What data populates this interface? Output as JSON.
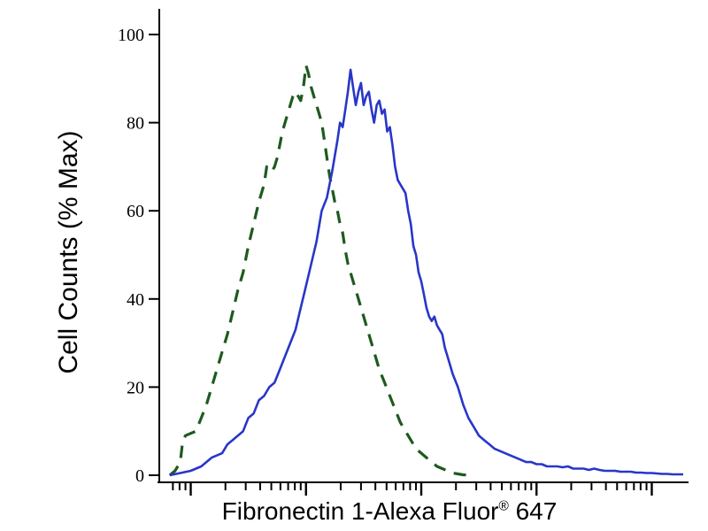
{
  "page": {
    "background": "#ffffff"
  },
  "chart_data": {
    "type": "line",
    "title": "",
    "ylabel": "Cell Counts (% Max)",
    "xlabel": "Fibronectin 1-Alexa Fluor",
    "xlabel_registered": "®",
    "xlabel_suffix": " 647",
    "ylim": [
      0,
      100
    ],
    "y_ticks": [
      0,
      20,
      40,
      60,
      80,
      100
    ],
    "x_scale": "log",
    "x_tick_labels": [],
    "x_decades_norm": [
      -16,
      6,
      28,
      50,
      72,
      94
    ],
    "x_decade_spacing": 22,
    "grid": false,
    "legend": false,
    "axis_color": "#000000",
    "series": [
      {
        "name": "dashed-green-curve",
        "color": "#1e5a1e",
        "style": "dashed",
        "dash": "14 10",
        "width": 3.2,
        "points": [
          [
            2,
            0
          ],
          [
            3,
            1
          ],
          [
            4,
            3
          ],
          [
            4.5,
            8
          ],
          [
            5,
            9
          ],
          [
            6,
            9.5
          ],
          [
            7,
            10
          ],
          [
            8,
            13
          ],
          [
            9,
            16
          ],
          [
            10,
            20
          ],
          [
            11,
            24
          ],
          [
            12,
            28
          ],
          [
            13,
            32
          ],
          [
            14,
            37
          ],
          [
            15,
            42
          ],
          [
            16,
            46
          ],
          [
            17,
            52
          ],
          [
            18,
            57
          ],
          [
            19,
            62
          ],
          [
            20,
            66
          ],
          [
            20.5,
            70
          ],
          [
            21,
            70
          ],
          [
            21.5,
            69
          ],
          [
            22,
            70
          ],
          [
            22.5,
            72
          ],
          [
            23,
            75
          ],
          [
            23.5,
            78
          ],
          [
            24,
            80
          ],
          [
            24.5,
            82
          ],
          [
            25,
            84
          ],
          [
            25.5,
            86
          ],
          [
            26,
            87
          ],
          [
            26.5,
            86
          ],
          [
            27,
            85
          ],
          [
            27.5,
            88
          ],
          [
            28,
            93
          ],
          [
            28.5,
            91
          ],
          [
            29,
            88
          ],
          [
            29.5,
            86
          ],
          [
            30,
            84
          ],
          [
            30.5,
            82
          ],
          [
            31,
            80
          ],
          [
            31.5,
            76
          ],
          [
            32,
            72
          ],
          [
            32.5,
            68
          ],
          [
            33,
            65
          ],
          [
            33.5,
            62
          ],
          [
            34,
            60
          ],
          [
            34.5,
            57
          ],
          [
            35,
            55
          ],
          [
            35.5,
            51
          ],
          [
            36,
            48
          ],
          [
            37,
            44
          ],
          [
            38,
            40
          ],
          [
            39,
            36
          ],
          [
            40,
            32
          ],
          [
            41,
            28
          ],
          [
            42,
            24
          ],
          [
            43,
            21
          ],
          [
            44,
            18
          ],
          [
            45,
            15
          ],
          [
            46,
            12
          ],
          [
            47,
            10
          ],
          [
            48,
            8
          ],
          [
            49,
            6
          ],
          [
            50,
            5
          ],
          [
            51,
            4
          ],
          [
            52,
            3
          ],
          [
            53,
            2
          ],
          [
            54,
            1.5
          ],
          [
            55,
            1
          ],
          [
            56,
            0.5
          ],
          [
            57,
            0.3
          ],
          [
            58,
            0.1
          ],
          [
            60,
            0
          ]
        ]
      },
      {
        "name": "solid-blue-curve",
        "color": "#2836c8",
        "style": "solid",
        "dash": "",
        "width": 2.6,
        "points": [
          [
            2,
            0
          ],
          [
            4,
            0.5
          ],
          [
            6,
            1
          ],
          [
            8,
            2
          ],
          [
            10,
            4
          ],
          [
            12,
            5
          ],
          [
            13,
            7
          ],
          [
            14,
            8
          ],
          [
            15,
            9
          ],
          [
            16,
            10
          ],
          [
            17,
            13
          ],
          [
            18,
            14
          ],
          [
            19,
            17
          ],
          [
            20,
            18
          ],
          [
            21,
            20
          ],
          [
            22,
            21
          ],
          [
            23,
            24
          ],
          [
            24,
            27
          ],
          [
            25,
            30
          ],
          [
            26,
            33
          ],
          [
            27,
            38
          ],
          [
            28,
            43
          ],
          [
            29,
            48
          ],
          [
            30,
            53
          ],
          [
            31,
            60
          ],
          [
            32,
            63
          ],
          [
            33,
            69
          ],
          [
            34,
            76
          ],
          [
            34.5,
            80
          ],
          [
            35,
            79
          ],
          [
            35.5,
            83
          ],
          [
            36,
            87
          ],
          [
            36.5,
            92
          ],
          [
            37,
            88
          ],
          [
            37.5,
            84
          ],
          [
            38,
            87
          ],
          [
            38.5,
            89
          ],
          [
            39,
            84
          ],
          [
            39.5,
            86
          ],
          [
            40,
            87
          ],
          [
            40.5,
            83
          ],
          [
            41,
            80
          ],
          [
            41.5,
            84
          ],
          [
            42,
            85
          ],
          [
            42.5,
            82
          ],
          [
            43,
            83
          ],
          [
            43.5,
            78
          ],
          [
            44,
            79
          ],
          [
            44.5,
            75
          ],
          [
            45,
            70
          ],
          [
            45.5,
            67
          ],
          [
            46,
            66
          ],
          [
            46.5,
            65
          ],
          [
            47,
            64
          ],
          [
            47.5,
            60
          ],
          [
            48,
            57
          ],
          [
            48.5,
            52
          ],
          [
            49,
            50
          ],
          [
            49.5,
            46
          ],
          [
            50,
            44
          ],
          [
            50.5,
            41
          ],
          [
            51,
            38
          ],
          [
            51.5,
            36
          ],
          [
            52,
            35
          ],
          [
            52.5,
            36
          ],
          [
            53,
            34
          ],
          [
            53.5,
            33
          ],
          [
            54,
            32
          ],
          [
            54.5,
            29
          ],
          [
            55,
            27
          ],
          [
            56,
            23
          ],
          [
            57,
            20
          ],
          [
            58,
            16
          ],
          [
            59,
            13
          ],
          [
            60,
            11
          ],
          [
            61,
            9
          ],
          [
            62,
            8
          ],
          [
            63,
            7
          ],
          [
            64,
            6
          ],
          [
            65,
            5.5
          ],
          [
            66,
            5
          ],
          [
            67,
            4.5
          ],
          [
            68,
            4
          ],
          [
            69,
            3.5
          ],
          [
            70,
            3
          ],
          [
            71,
            3
          ],
          [
            72,
            2.5
          ],
          [
            73,
            2.5
          ],
          [
            74,
            2
          ],
          [
            75,
            2
          ],
          [
            76,
            2
          ],
          [
            77,
            1.8
          ],
          [
            78,
            2
          ],
          [
            79,
            1.5
          ],
          [
            80,
            1.5
          ],
          [
            81,
            1.5
          ],
          [
            82,
            1.2
          ],
          [
            83,
            1.5
          ],
          [
            84,
            1.2
          ],
          [
            85,
            1
          ],
          [
            86,
            1
          ],
          [
            87,
            1
          ],
          [
            88,
            0.8
          ],
          [
            89,
            0.8
          ],
          [
            90,
            0.8
          ],
          [
            91,
            0.6
          ],
          [
            92,
            0.6
          ],
          [
            93,
            0.5
          ],
          [
            94,
            0.5
          ],
          [
            95,
            0.4
          ],
          [
            96,
            0.3
          ],
          [
            97,
            0.3
          ],
          [
            98,
            0.2
          ],
          [
            99,
            0.2
          ],
          [
            100,
            0.2
          ]
        ]
      }
    ]
  }
}
